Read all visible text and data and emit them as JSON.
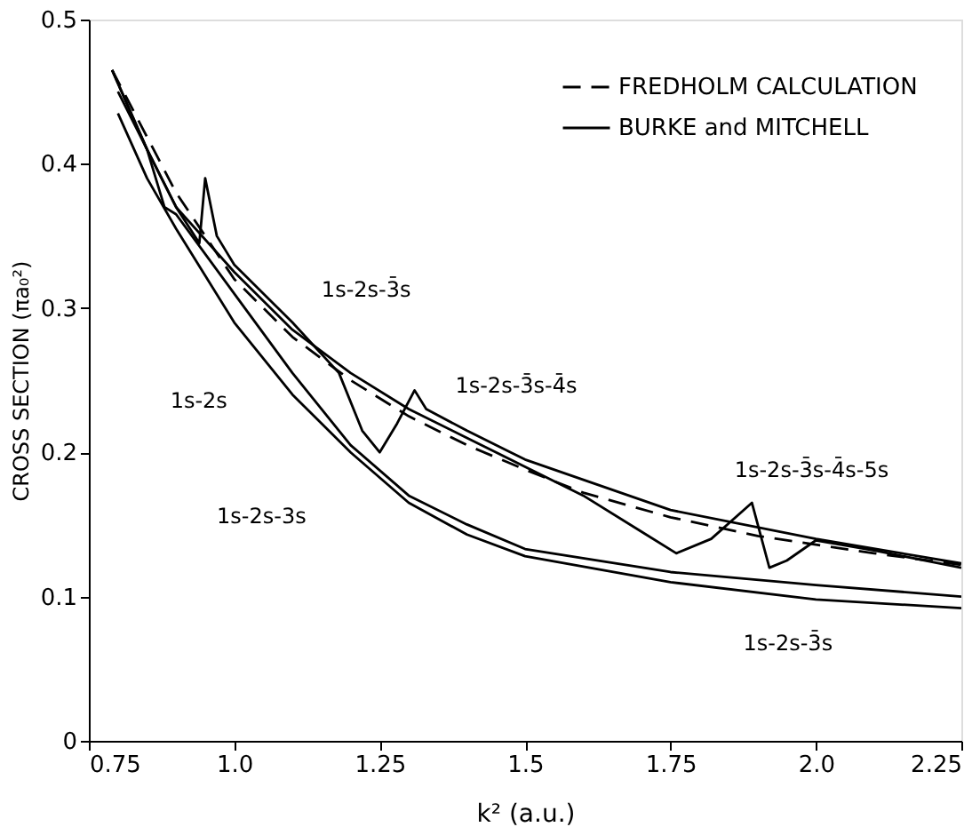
{
  "chart_data": {
    "type": "line",
    "xlabel": "k² (a.u.)",
    "ylabel": "CROSS SECTION (πa₀²)",
    "xlim": [
      0.75,
      2.25
    ],
    "ylim": [
      0,
      0.5
    ],
    "xticks": [
      0.75,
      {
        "value": 1,
        "label": "1.0"
      },
      1.25,
      1.5,
      1.75,
      {
        "value": 2,
        "label": "2.0"
      },
      2.25
    ],
    "yticks": [
      0,
      0.1,
      0.2,
      0.3,
      0.4,
      0.5
    ],
    "grid": false,
    "legend": "top right",
    "marker": "none",
    "series": [
      {
        "name": "FREDHOLM CALCULATION",
        "color": "#000000",
        "line_style": "dashed",
        "x": [
          0.79,
          0.9,
          1.0,
          1.1,
          1.2,
          1.3,
          1.4,
          1.5,
          1.6,
          1.75,
          1.9,
          2.0,
          2.1,
          2.25
        ],
        "values": [
          0.465,
          0.38,
          0.32,
          0.28,
          0.25,
          0.225,
          0.205,
          0.188,
          0.172,
          0.155,
          0.142,
          0.136,
          0.13,
          0.122
        ]
      },
      {
        "name": "BURKE and MITCHELL",
        "color": "#000000",
        "line_style": "solid",
        "x": [
          0.79,
          0.85,
          0.9,
          1.0,
          1.1,
          1.2,
          1.3,
          1.4,
          1.5,
          1.6,
          1.7,
          1.76,
          1.82,
          1.89,
          1.92,
          1.95,
          2.0,
          2.1,
          2.25
        ],
        "values": [
          0.465,
          0.41,
          0.37,
          0.325,
          0.285,
          0.255,
          0.23,
          0.21,
          0.19,
          0.17,
          0.145,
          0.13,
          0.14,
          0.165,
          0.12,
          0.125,
          0.139,
          0.132,
          0.12
        ]
      },
      {
        "color": "#000000",
        "line_style": "solid",
        "x": [
          0.79,
          0.85,
          0.9,
          0.94,
          0.95,
          0.97,
          1.0,
          1.1,
          1.18,
          1.22,
          1.25,
          1.28,
          1.31,
          1.33,
          1.4,
          1.5,
          1.75,
          2.0,
          2.25
        ],
        "values": [
          0.465,
          0.41,
          0.37,
          0.345,
          0.39,
          0.35,
          0.33,
          0.29,
          0.255,
          0.215,
          0.2,
          0.22,
          0.243,
          0.23,
          0.215,
          0.195,
          0.16,
          0.14,
          0.123
        ]
      },
      {
        "color": "#000000",
        "line_style": "solid",
        "x": [
          0.8,
          0.85,
          0.88,
          0.9,
          1.0,
          1.1,
          1.2,
          1.3,
          1.4,
          1.5,
          1.75,
          2.0,
          2.25
        ],
        "values": [
          0.45,
          0.41,
          0.37,
          0.365,
          0.31,
          0.255,
          0.205,
          0.17,
          0.15,
          0.133,
          0.117,
          0.108,
          0.1
        ]
      },
      {
        "color": "#000000",
        "line_style": "solid",
        "x": [
          0.8,
          0.85,
          0.9,
          1.0,
          1.1,
          1.2,
          1.3,
          1.4,
          1.5,
          1.75,
          2.0,
          2.25
        ],
        "values": [
          0.435,
          0.39,
          0.355,
          0.29,
          0.24,
          0.2,
          0.165,
          0.143,
          0.128,
          0.11,
          0.098,
          0.092
        ]
      }
    ],
    "annotations": [
      "1s-2s-3̄s",
      "1s-2s-3̄s-4̄s",
      "1s-2s",
      "1s-2s-3s",
      "1s-2s-3̄s-4̄s-5s",
      "1s-2s-3̄s"
    ]
  }
}
